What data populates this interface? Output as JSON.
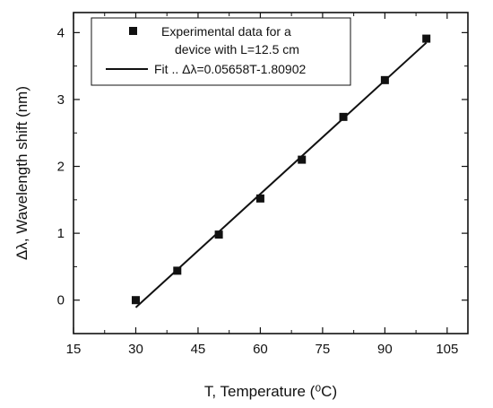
{
  "chart_data": {
    "type": "scatter",
    "xlabel": "T, Temperature (⁰C)",
    "ylabel": "Δλ,  Wavelength shift (nm)",
    "xlim": [
      15,
      110
    ],
    "ylim": [
      -0.5,
      4.3
    ],
    "x_ticks": [
      "15",
      "30",
      "45",
      "60",
      "75",
      "90",
      "105"
    ],
    "x_tick_values": [
      15,
      30,
      45,
      60,
      75,
      90,
      105
    ],
    "y_ticks": [
      "0",
      "1",
      "2",
      "3",
      "4"
    ],
    "y_tick_values": [
      0,
      1,
      2,
      3,
      4
    ],
    "grid": false,
    "legend_position": "top-left",
    "series": [
      {
        "name": "Experimental data for a device with L=12.5 cm",
        "legend_line1": "Experimental data for a",
        "legend_line2": "device with L=12.5 cm",
        "type": "scatter",
        "marker": "square",
        "color": "#111111",
        "x": [
          30,
          40,
          50,
          60,
          70,
          80,
          90,
          100
        ],
        "y": [
          0.0,
          0.44,
          0.98,
          1.52,
          2.1,
          2.74,
          3.29,
          3.91
        ]
      },
      {
        "name": "Fit .. Δλ=0.05658T-1.80902",
        "type": "line",
        "color": "#111111",
        "x": [
          30,
          100
        ],
        "y": [
          -0.11,
          3.85
        ]
      }
    ]
  }
}
